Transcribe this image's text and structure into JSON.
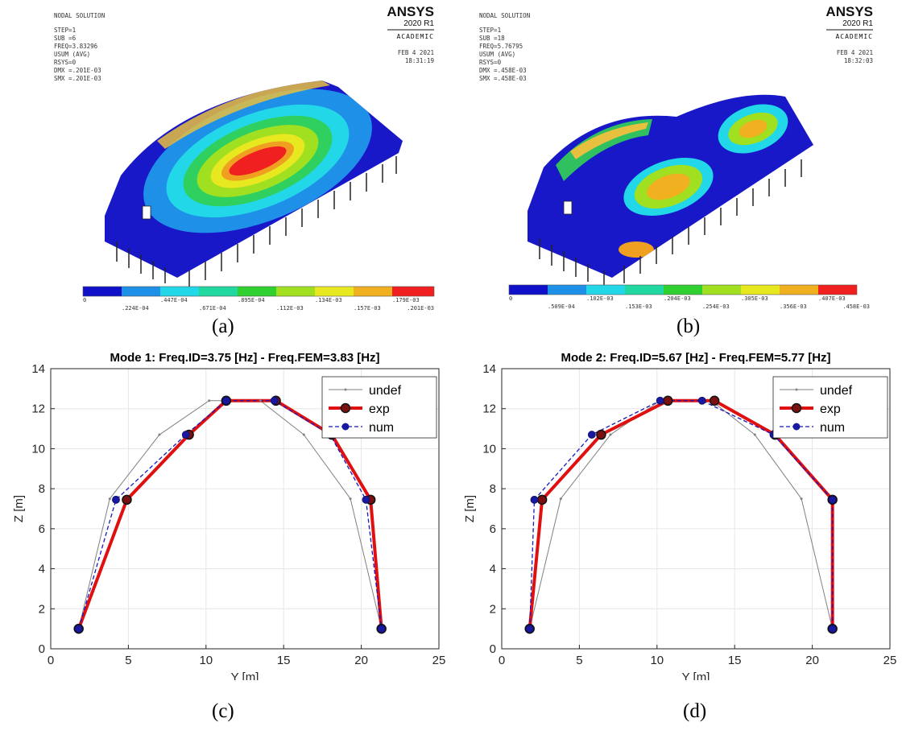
{
  "ansys": [
    {
      "id": "a",
      "lines": [
        "NODAL SOLUTION",
        "",
        "STEP=1",
        "SUB =6",
        "FREQ=3.83296",
        "USUM      (AVG)",
        "RSYS=0",
        "DMX =.201E-03",
        "SMX =.201E-03"
      ],
      "brand": "ANSYS",
      "version": "2020 R1",
      "academic": "ACADEMIC",
      "date": "FEB  4 2021",
      "time": "18:31:19",
      "colorbar_top": [
        "0",
        ".447E-04",
        ".895E-04",
        ".134E-03",
        ".179E-03"
      ],
      "colorbar_bottom": [
        ".224E-04",
        ".671E-04",
        ".112E-03",
        ".157E-03",
        ".201E-03"
      ],
      "colors": [
        "#1010c8",
        "#1e90e8",
        "#22d8e8",
        "#20d8a0",
        "#30d030",
        "#a0e020",
        "#e8e820",
        "#f0b020",
        "#f02020"
      ]
    },
    {
      "id": "b",
      "lines": [
        "NODAL SOLUTION",
        "",
        "STEP=1",
        "SUB =18",
        "FREQ=5.76795",
        "USUM      (AVG)",
        "RSYS=0",
        "DMX =.458E-03",
        "SMX =.458E-03"
      ],
      "brand": "ANSYS",
      "version": "2020 R1",
      "academic": "ACADEMIC",
      "date": "FEB  4 2021",
      "time": "18:32:03",
      "colorbar_top": [
        "0",
        ".102E-03",
        ".204E-03",
        ".305E-03",
        ".407E-03"
      ],
      "colorbar_bottom": [
        ".509E-04",
        ".153E-03",
        ".254E-03",
        ".356E-03",
        ".458E-03"
      ],
      "colors": [
        "#1010c8",
        "#1e90e8",
        "#22d8e8",
        "#20d8a0",
        "#30d030",
        "#a0e020",
        "#e8e820",
        "#f0b020",
        "#f02020"
      ]
    }
  ],
  "captions": [
    "(a)",
    "(b)",
    "(c)",
    "(d)"
  ],
  "chart_data": [
    {
      "type": "line",
      "title": "Mode 1: Freq.ID=3.75 [Hz] - Freq.FEM=3.83 [Hz]",
      "xlabel": "Y [m]",
      "ylabel": "Z [m]",
      "xlim": [
        0,
        25
      ],
      "ylim": [
        0,
        14
      ],
      "xticks": [
        0,
        5,
        10,
        15,
        20,
        25
      ],
      "yticks": [
        0,
        2,
        4,
        6,
        8,
        10,
        12,
        14
      ],
      "grid": true,
      "legend_position": "top-right",
      "series": [
        {
          "name": "undef",
          "color": "#808080",
          "x": [
            1.8,
            3.8,
            7.0,
            10.2,
            13.5,
            16.3,
            19.3,
            21.3
          ],
          "y": [
            1.0,
            7.5,
            10.7,
            12.4,
            12.4,
            10.7,
            7.5,
            1.0
          ]
        },
        {
          "name": "exp",
          "color": "#e01010",
          "x": [
            1.8,
            4.9,
            8.9,
            11.3,
            14.5,
            18.1,
            20.6,
            21.3
          ],
          "y": [
            1.0,
            7.45,
            10.7,
            12.4,
            12.4,
            10.7,
            7.45,
            1.0
          ]
        },
        {
          "name": "num",
          "color": "#1818c0",
          "x": [
            1.8,
            4.2,
            8.7,
            11.3,
            14.4,
            18.0,
            20.3,
            21.3
          ],
          "y": [
            1.0,
            7.45,
            10.7,
            12.4,
            12.4,
            10.7,
            7.45,
            1.0
          ]
        }
      ]
    },
    {
      "type": "line",
      "title": "Mode 2: Freq.ID=5.67 [Hz] - Freq.FEM=5.77 [Hz]",
      "xlabel": "Y [m]",
      "ylabel": "Z [m]",
      "xlim": [
        0,
        25
      ],
      "ylim": [
        0,
        14
      ],
      "xticks": [
        0,
        5,
        10,
        15,
        20,
        25
      ],
      "yticks": [
        0,
        2,
        4,
        6,
        8,
        10,
        12,
        14
      ],
      "grid": true,
      "legend_position": "top-right",
      "series": [
        {
          "name": "undef",
          "color": "#808080",
          "x": [
            1.8,
            3.8,
            7.0,
            10.2,
            13.5,
            16.3,
            19.3,
            21.3
          ],
          "y": [
            1.0,
            7.5,
            10.7,
            12.4,
            12.4,
            10.7,
            7.5,
            1.0
          ]
        },
        {
          "name": "exp",
          "color": "#e01010",
          "x": [
            1.8,
            2.6,
            6.4,
            10.7,
            13.7,
            17.6,
            21.3,
            21.3
          ],
          "y": [
            1.0,
            7.45,
            10.7,
            12.4,
            12.4,
            10.7,
            7.45,
            1.0
          ]
        },
        {
          "name": "num",
          "color": "#1818c0",
          "x": [
            1.8,
            2.1,
            5.8,
            10.2,
            12.9,
            17.5,
            21.3,
            21.3
          ],
          "y": [
            1.0,
            7.45,
            10.7,
            12.4,
            12.4,
            10.7,
            7.45,
            1.0
          ]
        }
      ]
    }
  ]
}
